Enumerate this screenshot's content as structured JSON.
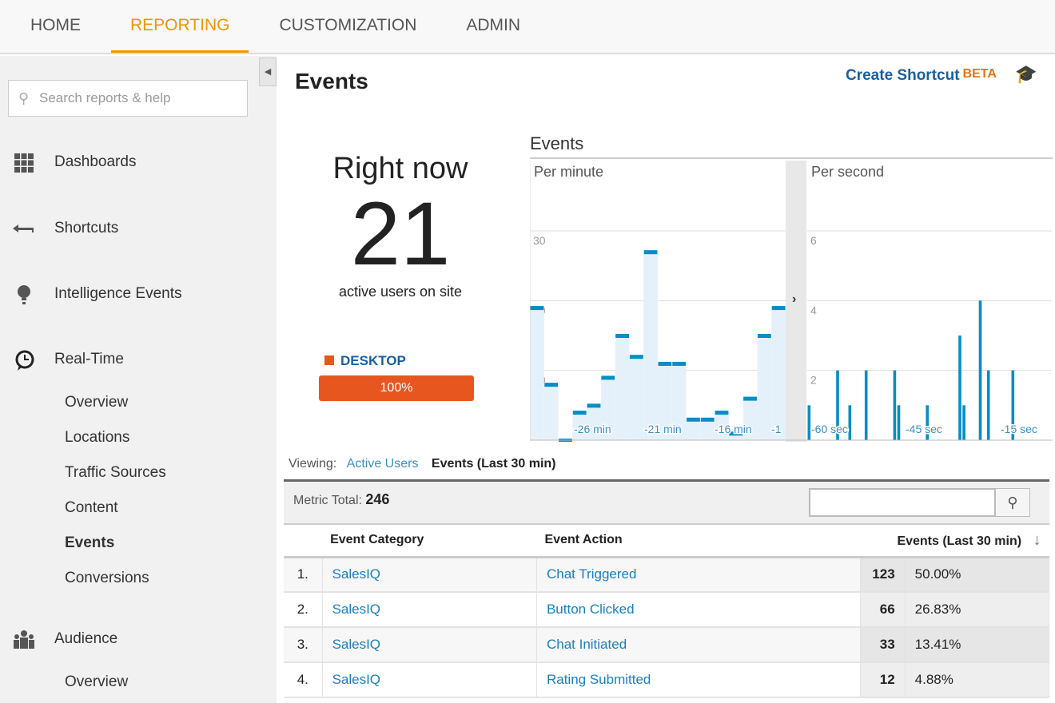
{
  "topnav": {
    "tabs": [
      {
        "label": "HOME"
      },
      {
        "label": "REPORTING",
        "active": true
      },
      {
        "label": "CUSTOMIZATION"
      },
      {
        "label": "ADMIN"
      }
    ]
  },
  "sidebar": {
    "search_placeholder": "Search reports & help",
    "items": [
      {
        "label": "Dashboards",
        "icon": "grid-icon"
      },
      {
        "label": "Shortcuts",
        "icon": "shortcut-arrow-icon"
      },
      {
        "label": "Intelligence Events",
        "icon": "lightbulb-icon"
      },
      {
        "label": "Real-Time",
        "icon": "clock-bubble-icon"
      },
      {
        "label": "Audience",
        "icon": "people-icon"
      }
    ],
    "realtime_sub": [
      {
        "label": "Overview"
      },
      {
        "label": "Locations"
      },
      {
        "label": "Traffic Sources"
      },
      {
        "label": "Content"
      },
      {
        "label": "Events",
        "active": true
      },
      {
        "label": "Conversions"
      }
    ],
    "audience_sub": [
      {
        "label": "Overview"
      }
    ]
  },
  "main": {
    "title": "Events",
    "create_shortcut": "Create Shortcut",
    "beta": "BETA",
    "right_now": {
      "label": "Right now",
      "count": "21",
      "sub": "active users on site"
    },
    "device": {
      "label": "DESKTOP",
      "percent": "100%",
      "color": "#e8561f"
    },
    "viewing": {
      "label": "Viewing:",
      "active_users": "Active Users",
      "events": "Events (Last 30 min)"
    },
    "metric_total_label": "Metric Total:",
    "metric_total": "246",
    "table": {
      "headers": [
        "Event Category",
        "Event Action",
        "Events (Last 30 min)"
      ],
      "rows": [
        {
          "rank": "1.",
          "category": "SalesIQ",
          "action": "Chat Triggered",
          "events": "123",
          "pct": "50.00%"
        },
        {
          "rank": "2.",
          "category": "SalesIQ",
          "action": "Button Clicked",
          "events": "66",
          "pct": "26.83%"
        },
        {
          "rank": "3.",
          "category": "SalesIQ",
          "action": "Chat Initiated",
          "events": "33",
          "pct": "13.41%"
        },
        {
          "rank": "4.",
          "category": "SalesIQ",
          "action": "Rating Submitted",
          "events": "12",
          "pct": "4.88%"
        }
      ]
    }
  },
  "chart_data": [
    {
      "type": "bar",
      "title": "Events",
      "subtitle": "Per minute",
      "ylim": [
        0,
        30
      ],
      "yticks": [
        "10",
        "20",
        "30"
      ],
      "xticks": [
        "-26 min",
        "-21 min",
        "-16 min",
        "-1"
      ],
      "values": [
        19,
        8,
        0,
        4,
        5,
        9,
        15,
        12,
        27,
        11,
        11,
        3,
        3,
        4,
        1,
        6,
        15,
        19
      ],
      "color": "#058dc7"
    },
    {
      "type": "bar",
      "subtitle": "Per second",
      "ylim": [
        0,
        6
      ],
      "yticks": [
        "2",
        "4",
        "6"
      ],
      "xticks": [
        "-60 sec",
        "-45 sec",
        "-15 sec"
      ],
      "values": [
        1,
        0,
        0,
        0,
        0,
        0,
        0,
        2,
        0,
        0,
        1,
        0,
        0,
        0,
        2,
        0,
        0,
        0,
        0,
        0,
        0,
        2,
        1,
        0,
        0,
        0,
        0,
        0,
        0,
        1,
        0,
        0,
        0,
        0,
        0,
        0,
        0,
        3,
        1,
        0,
        0,
        0,
        4,
        0,
        2,
        0,
        0,
        0,
        0,
        0,
        2,
        0,
        0,
        0,
        0,
        0,
        0,
        0,
        0,
        0
      ],
      "color": "#058dc7"
    }
  ]
}
